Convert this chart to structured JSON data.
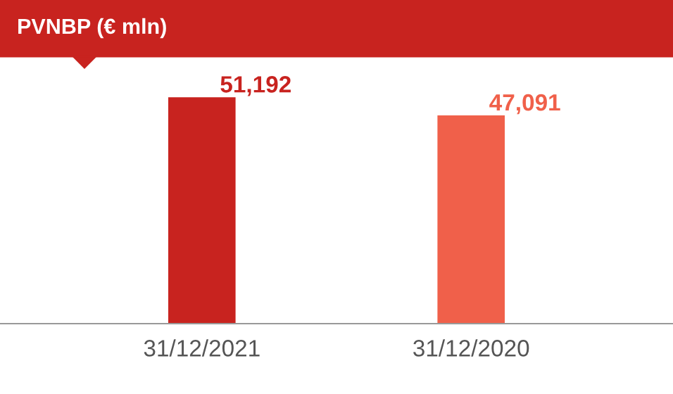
{
  "chart_data": {
    "type": "bar",
    "title": "PVNBP (€ mln)",
    "categories": [
      "31/12/2021",
      "31/12/2020"
    ],
    "values": [
      51192,
      47091
    ],
    "value_labels": [
      "51,192",
      "47,091"
    ],
    "colors": [
      "#c8231f",
      "#f0604a"
    ],
    "tick_labels": "x",
    "grid": false
  }
}
